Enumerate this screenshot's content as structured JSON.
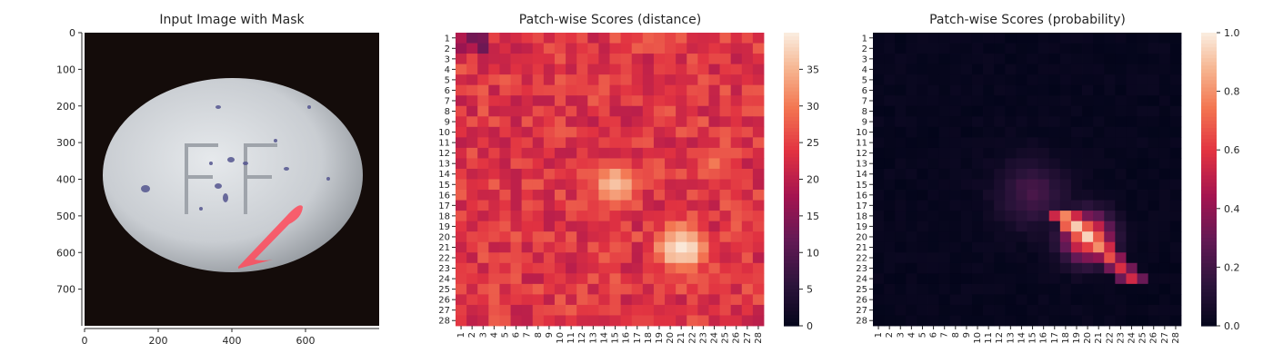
{
  "chart_data": [
    {
      "type": "image",
      "title": "Input Image with Mask",
      "x_ticks": [
        0,
        200,
        400,
        600
      ],
      "y_ticks": [
        0,
        100,
        200,
        300,
        400,
        500,
        600,
        700
      ],
      "xlim": [
        0,
        800
      ],
      "ylim": [
        800,
        0
      ],
      "overlay": "mask"
    },
    {
      "type": "heatmap",
      "title": "Patch-wise Scores (distance)",
      "x_ticks": [
        "1",
        "2",
        "3",
        "4",
        "5",
        "6",
        "7",
        "8",
        "9",
        "10",
        "11",
        "12",
        "13",
        "14",
        "15",
        "16",
        "17",
        "18",
        "19",
        "20",
        "21",
        "22",
        "23",
        "24",
        "25",
        "26",
        "27",
        "28"
      ],
      "y_ticks": [
        "1",
        "2",
        "3",
        "4",
        "5",
        "6",
        "7",
        "8",
        "9",
        "10",
        "11",
        "12",
        "13",
        "14",
        "15",
        "16",
        "17",
        "18",
        "19",
        "20",
        "21",
        "22",
        "23",
        "24",
        "25",
        "26",
        "27",
        "28"
      ],
      "colorbar": {
        "ticks": [
          "0",
          "5",
          "10",
          "15",
          "20",
          "25",
          "30",
          "35"
        ],
        "vmin": 0,
        "vmax": 40,
        "colormap": "rocket"
      },
      "grid_size": 28,
      "base_value": 24,
      "hotspots": [
        {
          "row": 15,
          "col": 15,
          "value": 35
        },
        {
          "row": 21,
          "col": 21,
          "value": 39
        },
        {
          "row": 13,
          "col": 24,
          "value": 29
        }
      ]
    },
    {
      "type": "heatmap",
      "title": "Patch-wise Scores (probability)",
      "x_ticks": [
        "1",
        "2",
        "3",
        "4",
        "5",
        "6",
        "7",
        "8",
        "9",
        "10",
        "11",
        "12",
        "13",
        "14",
        "15",
        "16",
        "17",
        "18",
        "19",
        "20",
        "21",
        "22",
        "23",
        "24",
        "25",
        "26",
        "27",
        "28"
      ],
      "y_ticks": [
        "1",
        "2",
        "3",
        "4",
        "5",
        "6",
        "7",
        "8",
        "9",
        "10",
        "11",
        "12",
        "13",
        "14",
        "15",
        "16",
        "17",
        "18",
        "19",
        "20",
        "21",
        "22",
        "23",
        "24",
        "25",
        "26",
        "27",
        "28"
      ],
      "colorbar": {
        "ticks": [
          "0.0",
          "0.2",
          "0.4",
          "0.6",
          "0.8",
          "1.0"
        ],
        "vmin": 0,
        "vmax": 1,
        "colormap": "rocket"
      },
      "grid_size": 28,
      "base_value": 0,
      "hotspots": [
        {
          "row": 20,
          "col": 20,
          "value": 0.75
        },
        {
          "row": 16,
          "col": 15,
          "value": 0.2
        }
      ]
    }
  ]
}
